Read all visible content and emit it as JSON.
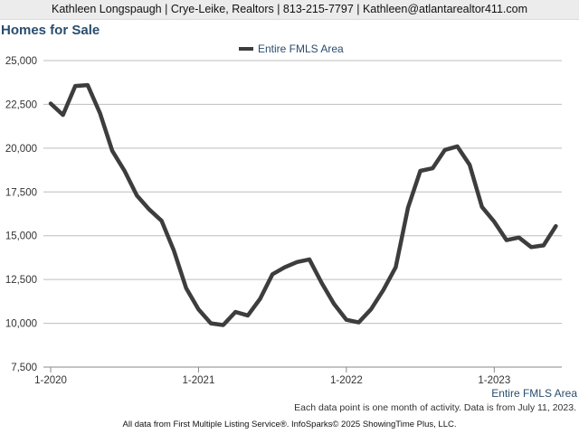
{
  "header": {
    "agent_info": "Kathleen Longspaugh | Crye-Leike, Realtors | 813-215-7797 | Kathleen@atlantarealtor411.com"
  },
  "footer": {
    "area_label": "Entire FMLS Area",
    "note": "Each data point is one month of activity. Data is from July 11, 2023.",
    "source": "All data from First Multiple Listing Service®. InfoSparks© 2025 ShowingTime Plus, LLC."
  },
  "colors": {
    "line": "#3d3d3d",
    "title": "#2a4d6e",
    "grid": "#bdbdbd"
  },
  "chart_data": {
    "type": "line",
    "title": "Homes for Sale",
    "xlabel": "",
    "ylabel": "",
    "legend_position": "top-center",
    "grid": true,
    "ylim": [
      7500,
      25000
    ],
    "yticks": [
      7500,
      10000,
      12500,
      15000,
      17500,
      20000,
      22500,
      25000
    ],
    "ytick_labels": [
      "7,500",
      "10,000",
      "12,500",
      "15,000",
      "17,500",
      "20,000",
      "22,500",
      "25,000"
    ],
    "xticks": [
      "2020-01",
      "2021-01",
      "2022-01",
      "2023-01"
    ],
    "xtick_labels": [
      "1-2020",
      "1-2021",
      "1-2022",
      "1-2023"
    ],
    "x_start": "2020-01",
    "x_end": "2023-07",
    "x": [
      "2020-01",
      "2020-02",
      "2020-03",
      "2020-04",
      "2020-05",
      "2020-06",
      "2020-07",
      "2020-08",
      "2020-09",
      "2020-10",
      "2020-11",
      "2020-12",
      "2021-01",
      "2021-02",
      "2021-03",
      "2021-04",
      "2021-05",
      "2021-06",
      "2021-07",
      "2021-08",
      "2021-09",
      "2021-10",
      "2021-11",
      "2021-12",
      "2022-01",
      "2022-02",
      "2022-03",
      "2022-04",
      "2022-05",
      "2022-06",
      "2022-07",
      "2022-08",
      "2022-09",
      "2022-10",
      "2022-11",
      "2022-12",
      "2023-01",
      "2023-02",
      "2023-03",
      "2023-04",
      "2023-05",
      "2023-06"
    ],
    "series": [
      {
        "name": "Entire FMLS Area",
        "values": [
          22550,
          21900,
          23550,
          23600,
          22000,
          19850,
          18700,
          17300,
          16500,
          15850,
          14150,
          12000,
          10800,
          10000,
          9900,
          10650,
          10450,
          11400,
          12800,
          13200,
          13500,
          13650,
          12300,
          11100,
          10200,
          10050,
          10800,
          11900,
          13200,
          16600,
          18700,
          18850,
          19900,
          20100,
          19050,
          16650,
          15800,
          14750,
          14900,
          14350,
          14450,
          15550
        ]
      }
    ]
  }
}
